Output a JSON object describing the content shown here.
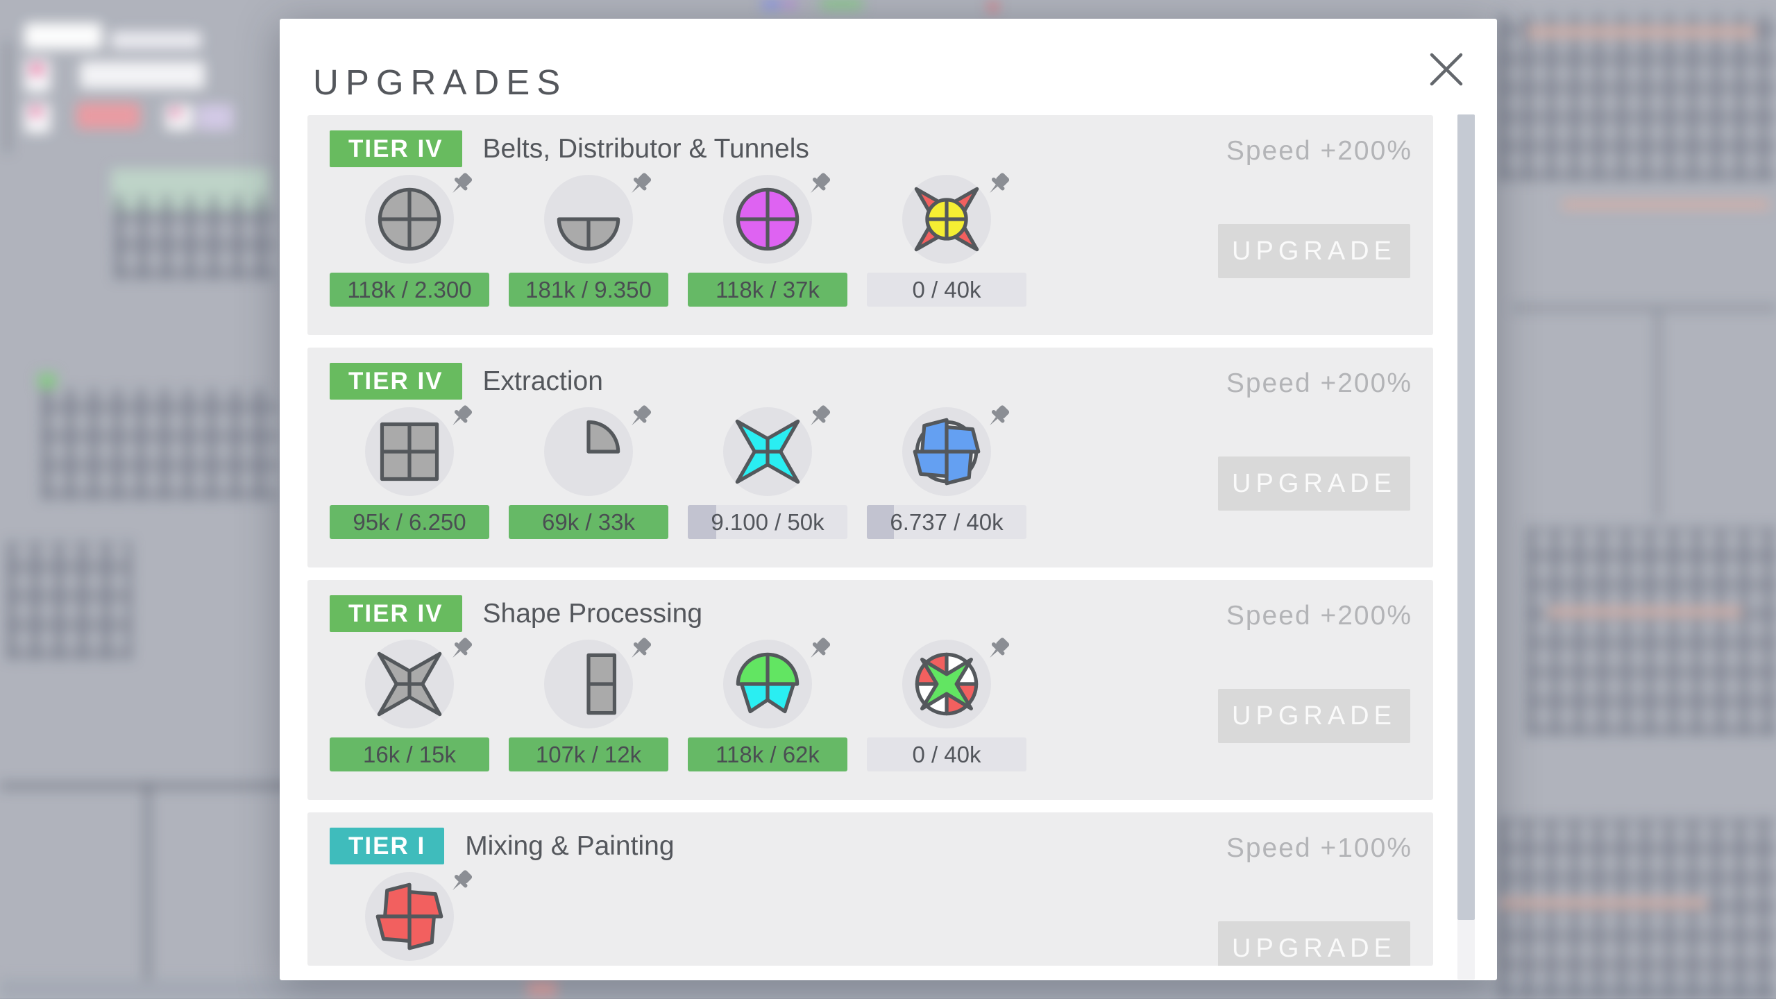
{
  "dialog": {
    "title": "UPGRADES",
    "upgrade_button_label": "UPGRADE",
    "sections": [
      {
        "tier": "TIER IV",
        "tier_style": "green",
        "name": "Belts, Distributor & Tunnels",
        "speed_bonus": "Speed +200%",
        "truncated": false,
        "requirements": [
          {
            "shape": "circle-uncolored",
            "progress": "118k / 2.300",
            "complete": true,
            "fraction": 1
          },
          {
            "shape": "half-circle-bottom-uncolored",
            "progress": "181k / 9.350",
            "complete": true,
            "fraction": 1
          },
          {
            "shape": "circle-purple",
            "progress": "118k / 37k",
            "complete": true,
            "fraction": 1
          },
          {
            "shape": "star-red-circle-yellow",
            "progress": "0 / 40k",
            "complete": false,
            "fraction": 0
          }
        ]
      },
      {
        "tier": "TIER IV",
        "tier_style": "green",
        "name": "Extraction",
        "speed_bonus": "Speed +200%",
        "truncated": false,
        "requirements": [
          {
            "shape": "square-uncolored",
            "progress": "95k / 6.250",
            "complete": true,
            "fraction": 1
          },
          {
            "shape": "quarter-circle-uncolored",
            "progress": "69k / 33k",
            "complete": true,
            "fraction": 1
          },
          {
            "shape": "star-cyan",
            "progress": "9.100 / 50k",
            "complete": false,
            "fraction": 0.18
          },
          {
            "shape": "circle-windmill-blue",
            "progress": "6.737 / 40k",
            "complete": false,
            "fraction": 0.17
          }
        ]
      },
      {
        "tier": "TIER IV",
        "tier_style": "green",
        "name": "Shape Processing",
        "speed_bonus": "Speed +200%",
        "truncated": false,
        "requirements": [
          {
            "shape": "star-uncolored",
            "progress": "16k / 15k",
            "complete": true,
            "fraction": 1
          },
          {
            "shape": "half-rect-right-uncolored",
            "progress": "107k / 12k",
            "complete": true,
            "fraction": 1
          },
          {
            "shape": "dome-green-arrow-cyan",
            "progress": "118k / 62k",
            "complete": true,
            "fraction": 1
          },
          {
            "shape": "circle-red-white-star-green",
            "progress": "0 / 40k",
            "complete": false,
            "fraction": 0
          }
        ]
      },
      {
        "tier": "TIER I",
        "tier_style": "teal",
        "name": "Mixing & Painting",
        "speed_bonus": "Speed +100%",
        "truncated": true,
        "requirements": [
          {
            "shape": "windmill-red",
            "progress": null,
            "complete": false,
            "fraction": 0
          }
        ]
      }
    ]
  },
  "colors": {
    "tier_green": "#68bb5f",
    "tier_teal": "#3fbcbc",
    "progress_complete": "#66b966",
    "progress_complete_text": "#4a4e52",
    "progress_track": "#e3e3e8",
    "progress_fill": "#c2c3d0",
    "pin_gray": "#8b8e94",
    "shape_outline": "#54585c",
    "shape_gray": "#aaaaaa",
    "shape_purple": "#de63f2",
    "shape_red": "#f2605f",
    "shape_yellow": "#f5ee33",
    "shape_cyan": "#2aeef2",
    "shape_blue": "#64a0f2",
    "shape_green": "#62e562",
    "shape_white": "#ffffff"
  }
}
